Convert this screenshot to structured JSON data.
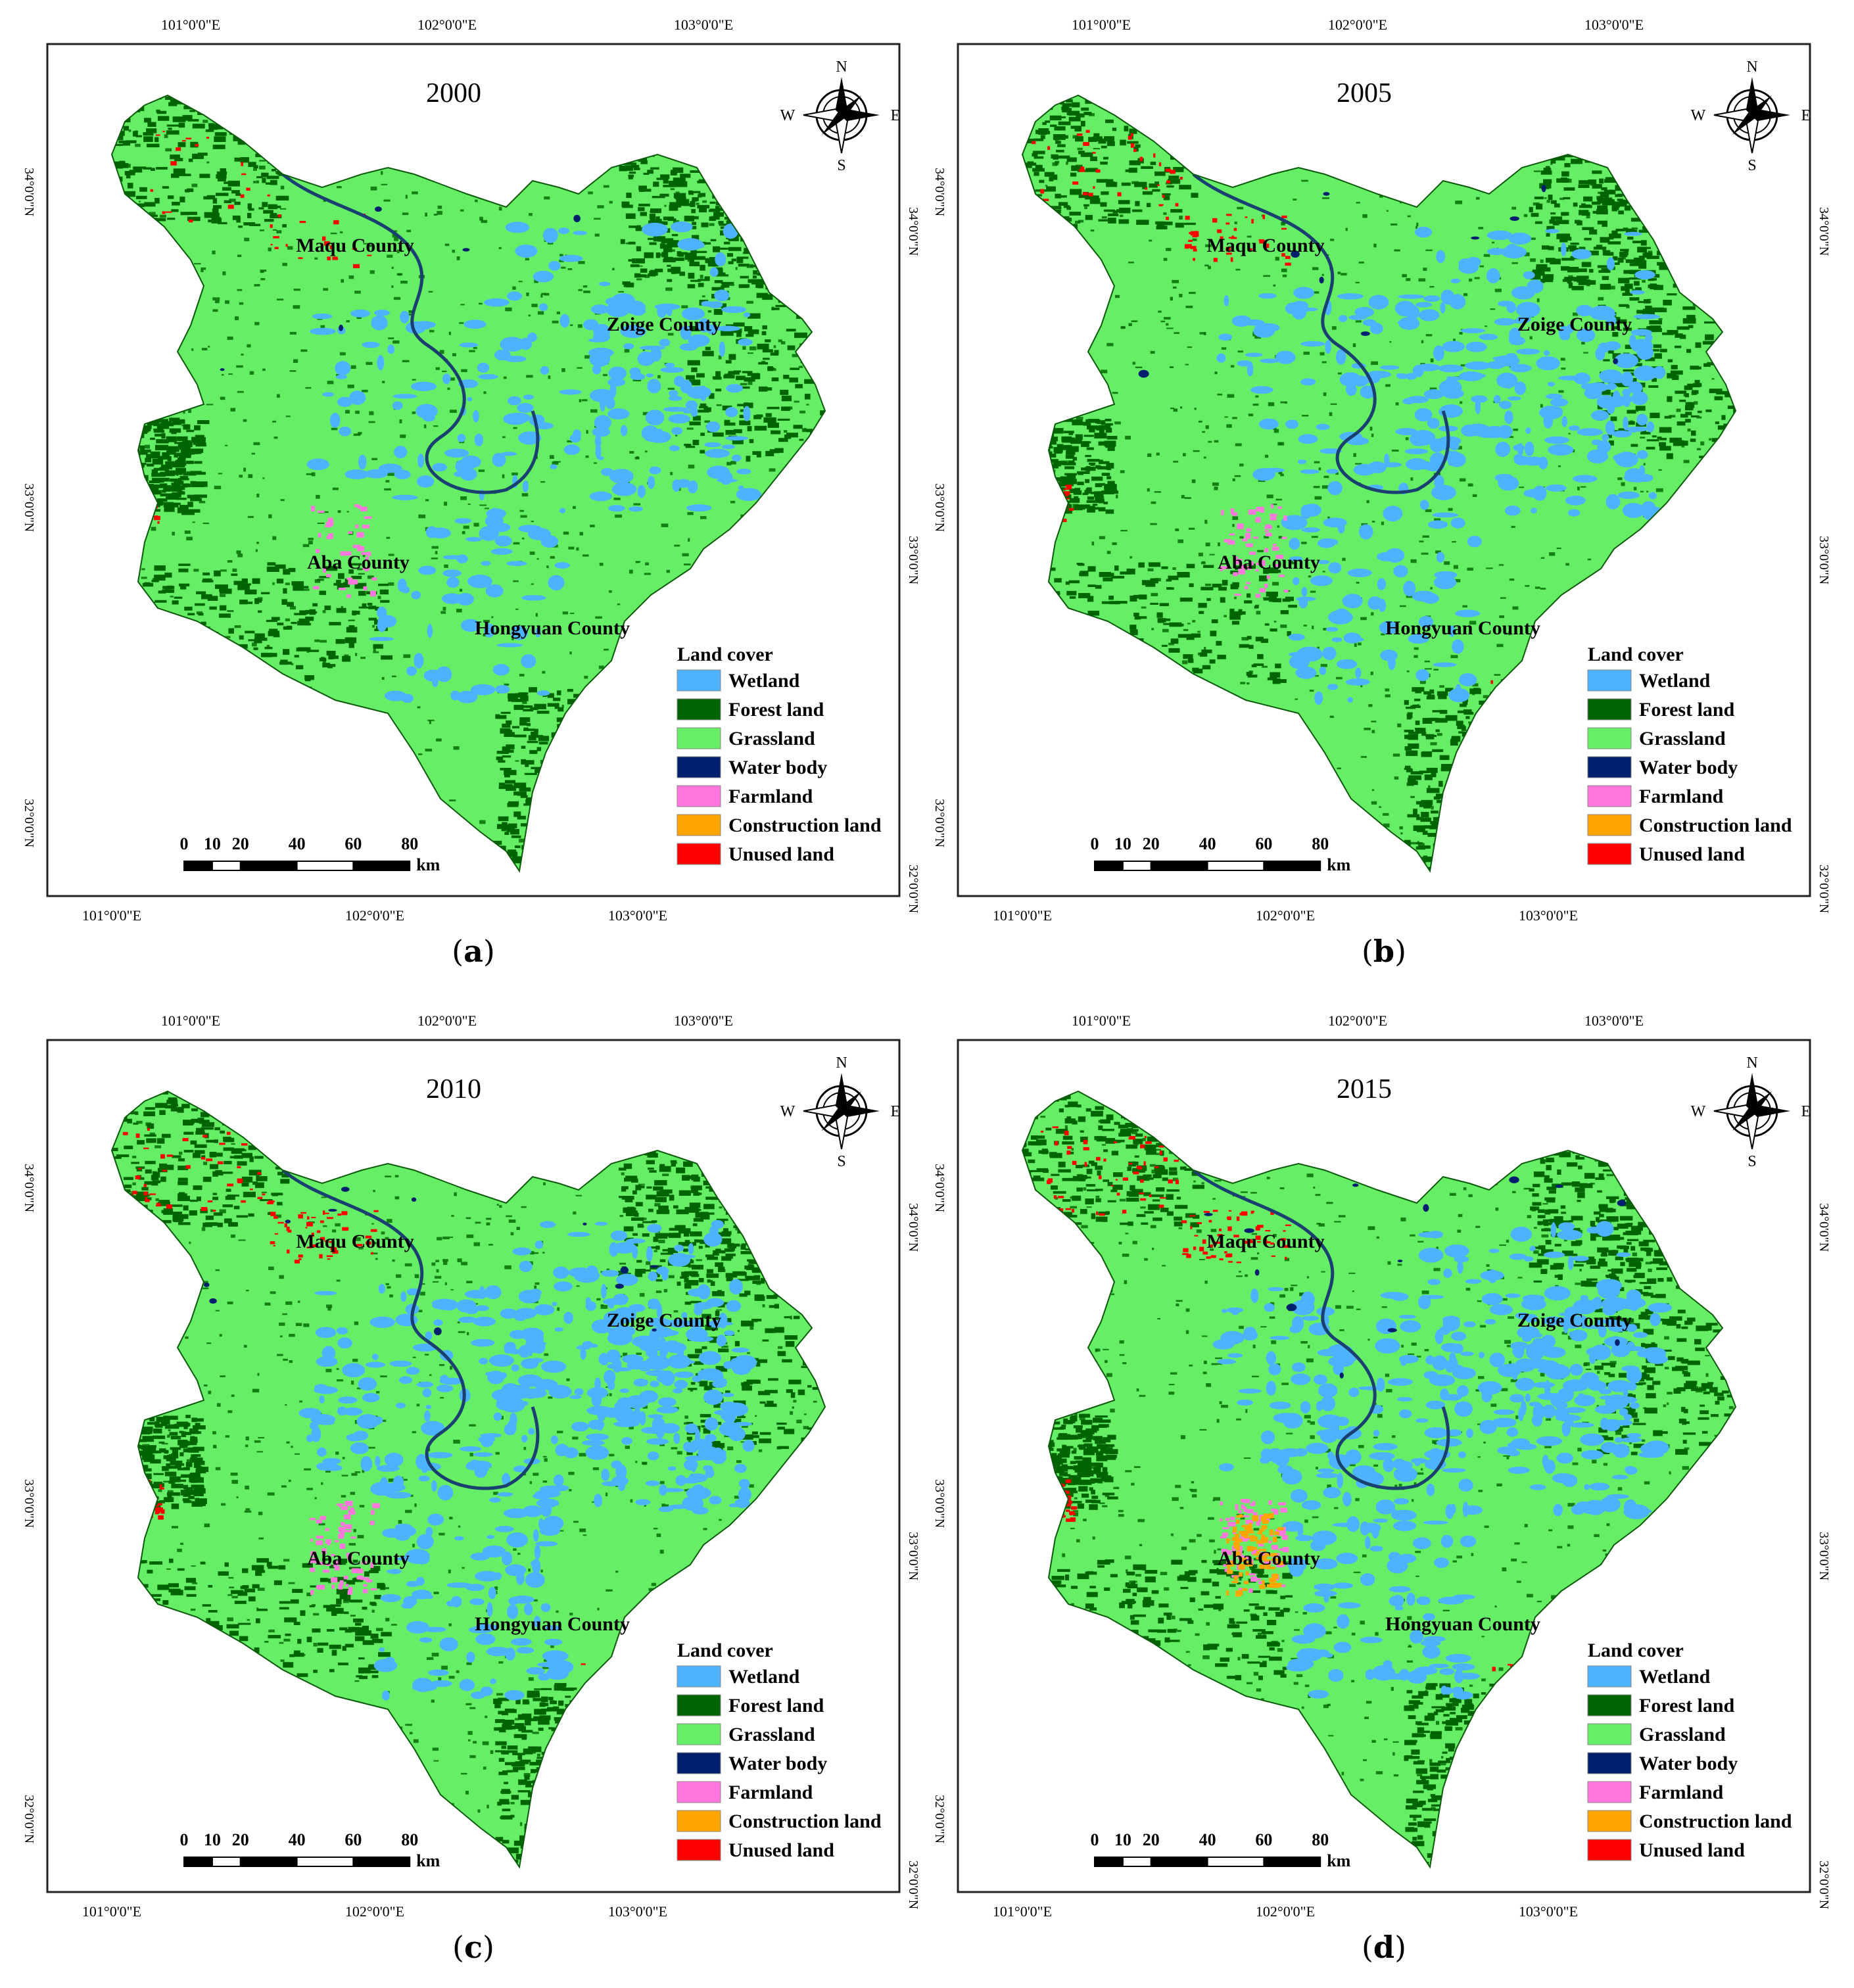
{
  "panels": [
    {
      "caption_letter": "a",
      "year": "2000",
      "variant": 0
    },
    {
      "caption_letter": "b",
      "year": "2005",
      "variant": 1
    },
    {
      "caption_letter": "c",
      "year": "2010",
      "variant": 2
    },
    {
      "caption_letter": "d",
      "year": "2015",
      "variant": 3
    }
  ],
  "top_ticks": [
    "101°0'0\"E",
    "102°0'0\"E",
    "103°0'0\"E"
  ],
  "bottom_ticks": [
    "101°0'0\"E",
    "102°0'0\"E",
    "103°0'0\"E"
  ],
  "left_ticks": [
    "34°0'0\"N",
    "33°0'0\"N",
    "32°0'0\"N"
  ],
  "right_ticks": [
    "34°0'0\"N",
    "33°0'0\"N",
    "32°0'0\"N"
  ],
  "compass": {
    "n": "N",
    "s": "S",
    "e": "E",
    "w": "W"
  },
  "counties": [
    "Maqu County",
    "Zoige County",
    "Aba County",
    "Hongyuan County"
  ],
  "legend": {
    "title": "Land cover",
    "items": [
      {
        "label": "Wetland",
        "color": "#4db3ff"
      },
      {
        "label": "Forest land",
        "color": "#006400"
      },
      {
        "label": "Grassland",
        "color": "#66ee66"
      },
      {
        "label": "Water body",
        "color": "#001f6e"
      },
      {
        "label": "Farmland",
        "color": "#ff77dd"
      },
      {
        "label": "Construction land",
        "color": "#ffa500"
      },
      {
        "label": "Unused land",
        "color": "#ff0000"
      }
    ]
  },
  "scale_bar": {
    "labels": [
      "0",
      "10",
      "20",
      "40",
      "60",
      "80"
    ],
    "unit": "km"
  }
}
